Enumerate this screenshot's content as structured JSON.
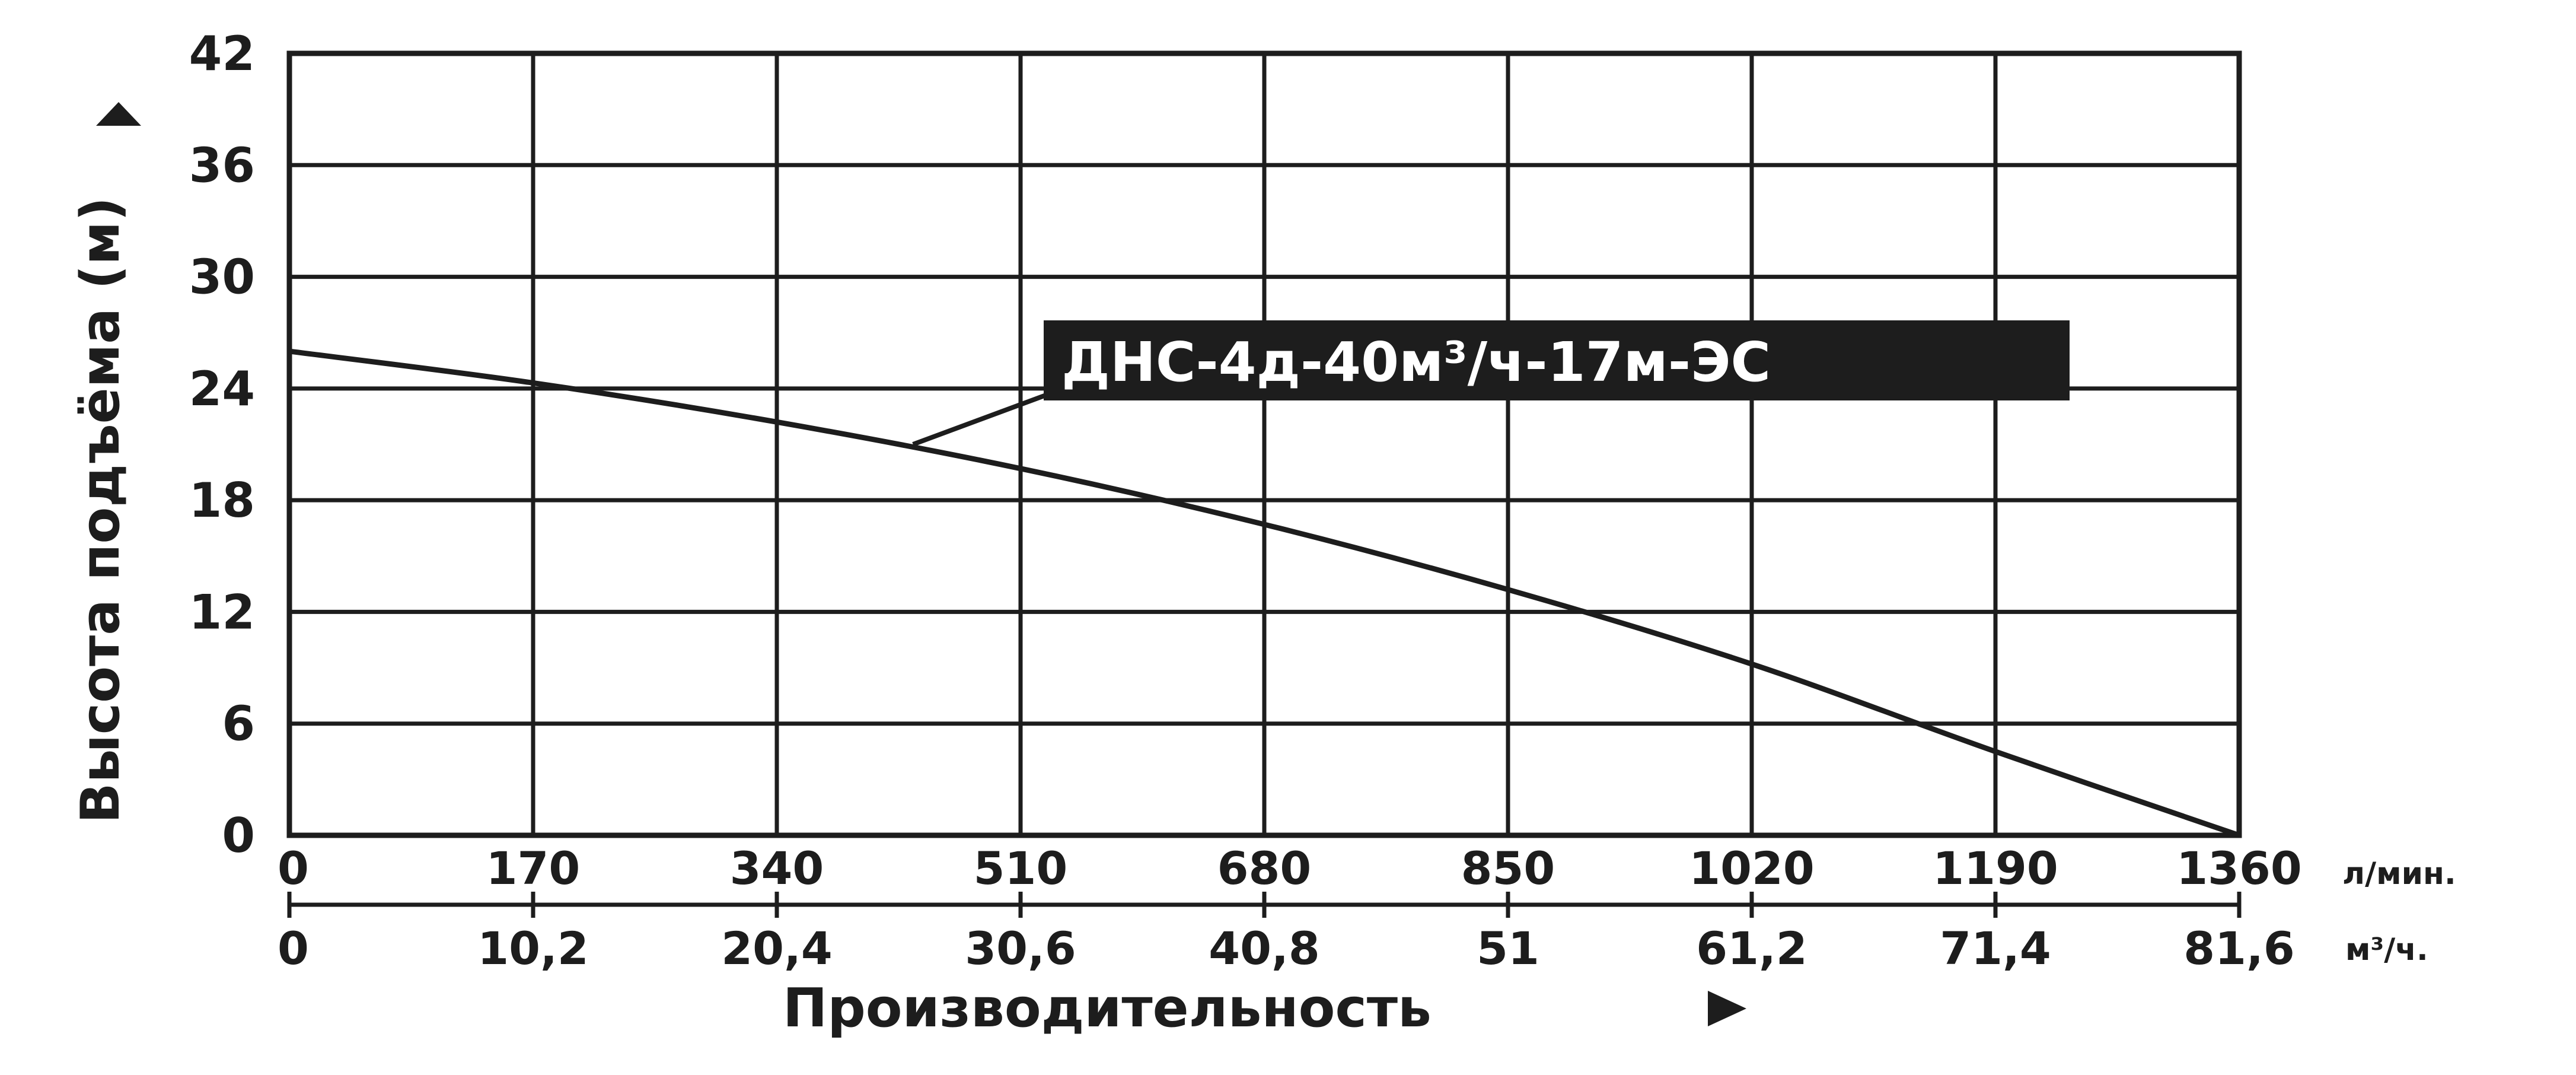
{
  "chart_data": {
    "type": "line",
    "ylabel": "Высота подъёма (м)",
    "xlabel": "Производительность",
    "ylim": [
      0,
      42
    ],
    "yticks": [
      "0",
      "6",
      "12",
      "18",
      "24",
      "30",
      "36",
      "42"
    ],
    "xlim": [
      0,
      1360
    ],
    "xticks_lmin": [
      "0",
      "170",
      "340",
      "510",
      "680",
      "850",
      "1020",
      "1190",
      "1360"
    ],
    "xticks_m3h": [
      "0",
      "10,2",
      "20,4",
      "30,6",
      "40,8",
      "51",
      "61,2",
      "71,4",
      "81,6"
    ],
    "x_unit_primary": "л/мин.",
    "x_unit_secondary": "м³/ч.",
    "grid": true,
    "series": [
      {
        "name": "ДНС-4д-40м³/ч-17м-ЭС",
        "x": [
          0,
          170,
          340,
          510,
          680,
          850,
          1020,
          1190,
          1360
        ],
        "y": [
          26,
          24.3,
          22.2,
          19.7,
          16.7,
          13.2,
          9.2,
          4.5,
          0
        ]
      }
    ],
    "colors": {
      "line": "#1d1d1d",
      "grid": "#1d1d1d",
      "label_bg": "#1d1d1d",
      "label_text": "#ffffff"
    }
  }
}
